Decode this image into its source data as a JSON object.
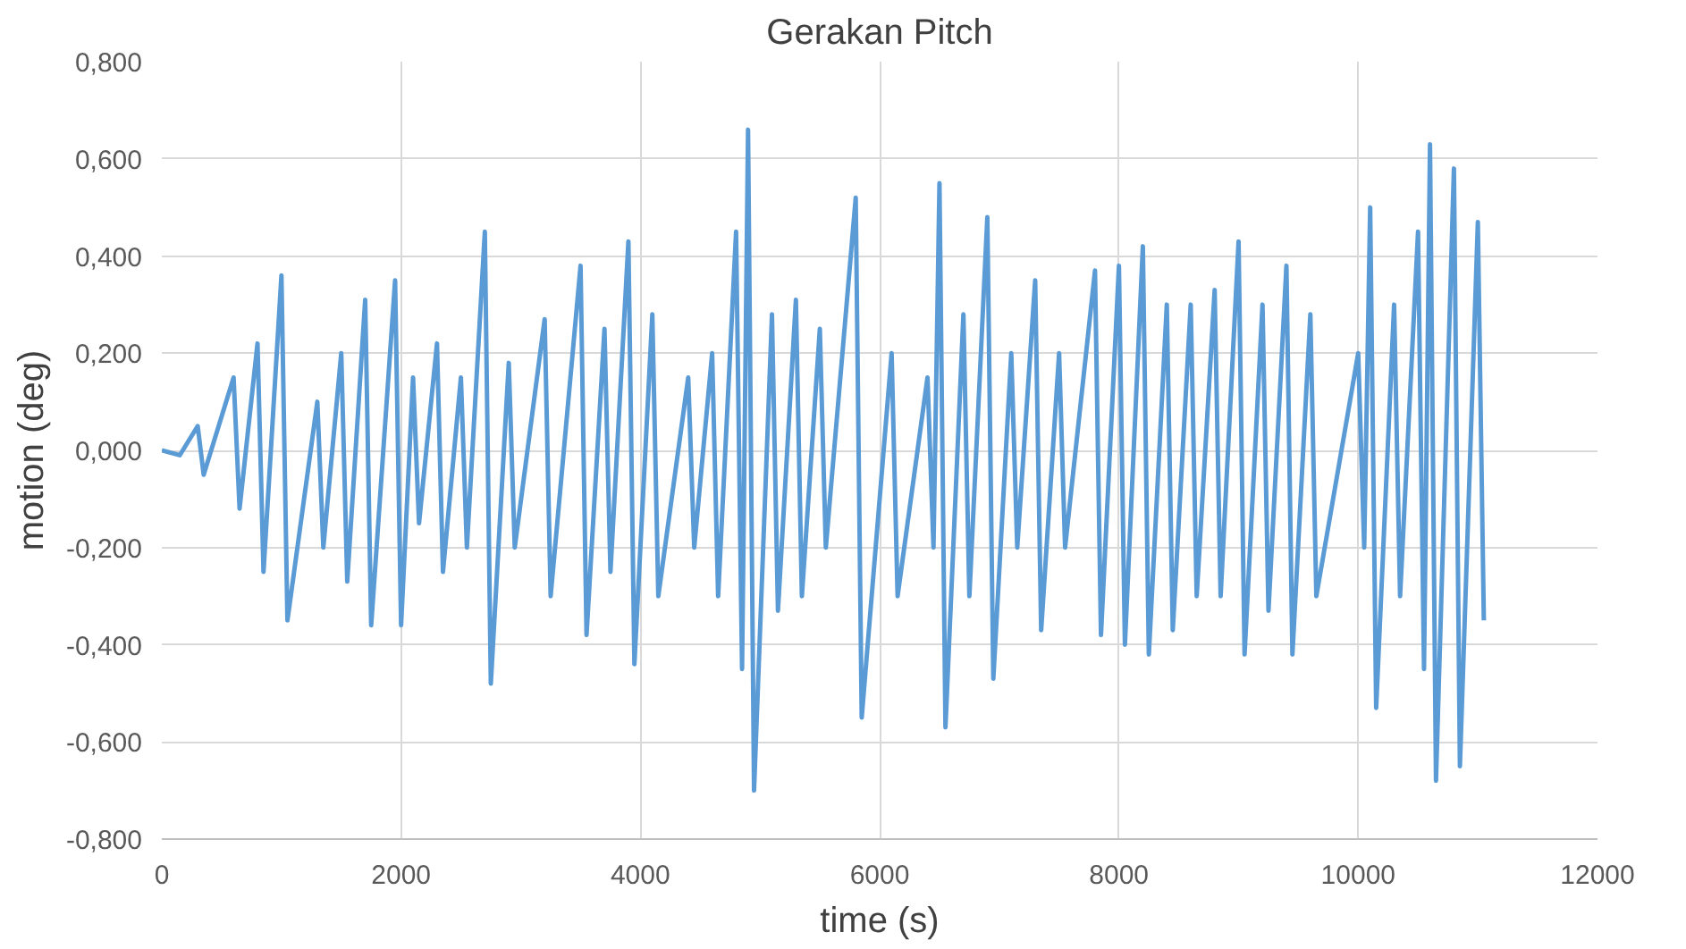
{
  "chart_data": {
    "type": "line",
    "title": "Gerakan Pitch",
    "xlabel": "time (s)",
    "ylabel": "motion (deg)",
    "x": [
      0,
      150,
      300,
      350,
      600,
      650,
      800,
      850,
      1000,
      1050,
      1300,
      1350,
      1500,
      1550,
      1700,
      1750,
      1950,
      2000,
      2100,
      2150,
      2300,
      2350,
      2500,
      2550,
      2700,
      2750,
      2900,
      2950,
      3200,
      3250,
      3500,
      3550,
      3700,
      3750,
      3900,
      3950,
      4100,
      4150,
      4400,
      4450,
      4600,
      4650,
      4800,
      4850,
      4900,
      4950,
      5100,
      5150,
      5300,
      5350,
      5500,
      5550,
      5800,
      5850,
      6100,
      6150,
      6400,
      6450,
      6500,
      6550,
      6700,
      6750,
      6900,
      6950,
      7100,
      7150,
      7300,
      7350,
      7500,
      7550,
      7800,
      7850,
      8000,
      8050,
      8200,
      8250,
      8400,
      8450,
      8600,
      8650,
      8800,
      8850,
      9000,
      9050,
      9200,
      9250,
      9400,
      9450,
      9600,
      9650,
      10000,
      10050,
      10100,
      10150,
      10300,
      10350,
      10500,
      10550,
      10600,
      10650,
      10800,
      10850,
      11000,
      11050
    ],
    "series": [
      {
        "color": "#5b9bd5",
        "values": [
          0,
          -0.01,
          0.05,
          -0.05,
          0.15,
          -0.12,
          0.22,
          -0.25,
          0.36,
          -0.35,
          0.1,
          -0.2,
          0.2,
          -0.27,
          0.31,
          -0.36,
          0.35,
          -0.36,
          0.15,
          -0.15,
          0.22,
          -0.25,
          0.15,
          -0.2,
          0.45,
          -0.48,
          0.18,
          -0.2,
          0.27,
          -0.3,
          0.38,
          -0.38,
          0.25,
          -0.25,
          0.43,
          -0.44,
          0.28,
          -0.3,
          0.15,
          -0.2,
          0.2,
          -0.3,
          0.45,
          -0.45,
          0.66,
          -0.7,
          0.28,
          -0.33,
          0.31,
          -0.3,
          0.25,
          -0.2,
          0.52,
          -0.55,
          0.2,
          -0.3,
          0.15,
          -0.2,
          0.55,
          -0.57,
          0.28,
          -0.3,
          0.48,
          -0.47,
          0.2,
          -0.2,
          0.35,
          -0.37,
          0.2,
          -0.2,
          0.37,
          -0.38,
          0.38,
          -0.4,
          0.42,
          -0.42,
          0.3,
          -0.37,
          0.3,
          -0.3,
          0.33,
          -0.3,
          0.43,
          -0.42,
          0.3,
          -0.33,
          0.38,
          -0.42,
          0.28,
          -0.3,
          0.2,
          -0.2,
          0.5,
          -0.53,
          0.3,
          -0.3,
          0.45,
          -0.45,
          0.63,
          -0.68,
          0.58,
          -0.65,
          0.47,
          -0.35
        ]
      }
    ],
    "xlim": [
      0,
      12000
    ],
    "xticks": [
      0,
      2000,
      4000,
      6000,
      8000,
      10000,
      12000
    ],
    "ylim": [
      -0.8,
      0.8
    ],
    "yticks": [
      {
        "value": -0.8,
        "label": "-0,800"
      },
      {
        "value": -0.6,
        "label": "-0,600"
      },
      {
        "value": -0.4,
        "label": "-0,400"
      },
      {
        "value": -0.2,
        "label": "-0,200"
      },
      {
        "value": 0,
        "label": "0,000"
      },
      {
        "value": 0.2,
        "label": "0,200"
      },
      {
        "value": 0.4,
        "label": "0,400"
      },
      {
        "value": 0.6,
        "label": "0,600"
      },
      {
        "value": 0.8,
        "label": "0,800"
      }
    ],
    "grid": true,
    "marker": "none",
    "line_style": "solid"
  }
}
